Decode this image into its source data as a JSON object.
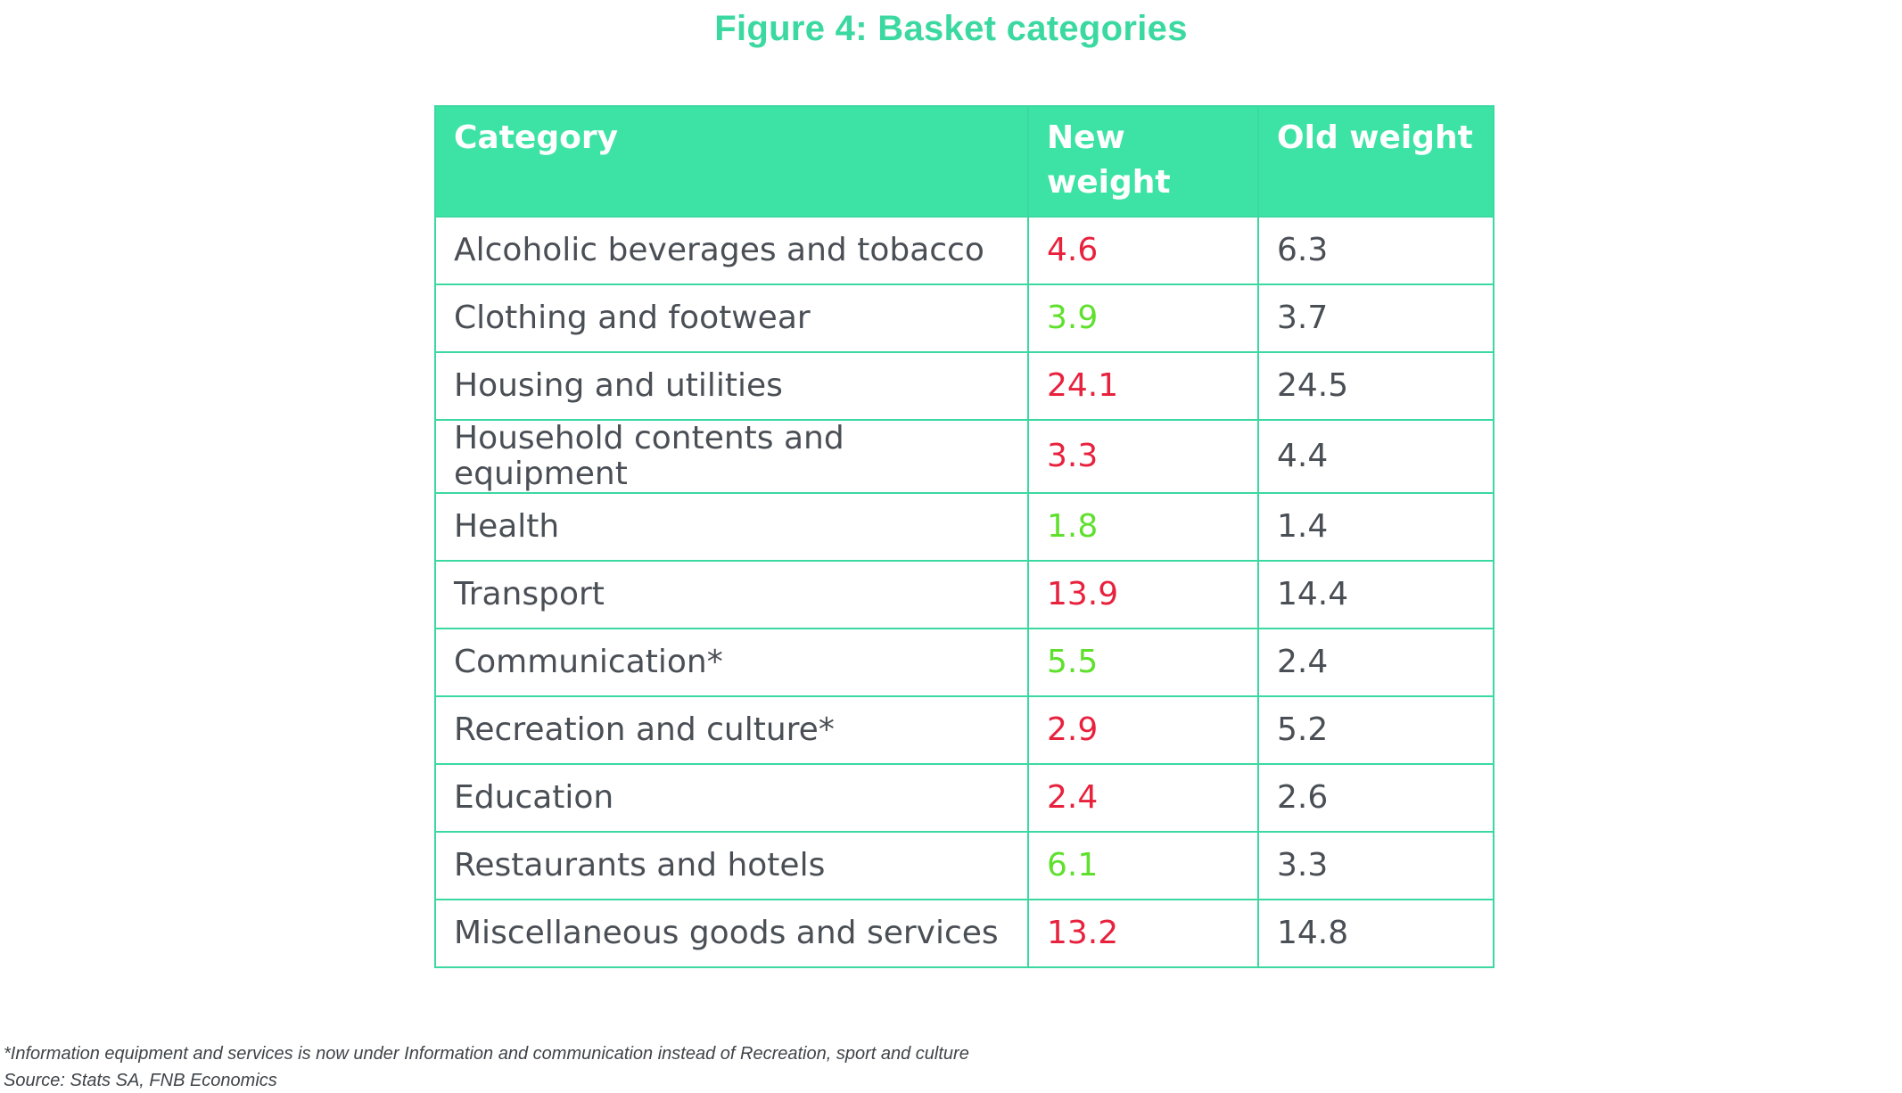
{
  "chart_data": {
    "type": "table",
    "title": "Figure 4: Basket categories",
    "columns": [
      "Category",
      "New weight",
      "Old weight"
    ],
    "rows": [
      {
        "category": "Alcoholic beverages and tobacco",
        "new_weight": "4.6",
        "old_weight": "6.3",
        "change": "down"
      },
      {
        "category": "Clothing and footwear",
        "new_weight": "3.9",
        "old_weight": "3.7",
        "change": "up"
      },
      {
        "category": "Housing and utilities",
        "new_weight": "24.1",
        "old_weight": "24.5",
        "change": "down"
      },
      {
        "category": "Household contents and equipment",
        "new_weight": "3.3",
        "old_weight": "4.4",
        "change": "down"
      },
      {
        "category": "Health",
        "new_weight": "1.8",
        "old_weight": "1.4",
        "change": "up"
      },
      {
        "category": "Transport",
        "new_weight": "13.9",
        "old_weight": "14.4",
        "change": "down"
      },
      {
        "category": "Communication*",
        "new_weight": "5.5",
        "old_weight": "2.4",
        "change": "up"
      },
      {
        "category": "Recreation and culture*",
        "new_weight": "2.9",
        "old_weight": "5.2",
        "change": "down"
      },
      {
        "category": "Education",
        "new_weight": "2.4",
        "old_weight": "2.6",
        "change": "down"
      },
      {
        "category": "Restaurants and hotels",
        "new_weight": "6.1",
        "old_weight": "3.3",
        "change": "up"
      },
      {
        "category": "Miscellaneous goods and services",
        "new_weight": "13.2",
        "old_weight": "14.8",
        "change": "down"
      }
    ],
    "footnote": "*Information equipment and services is now under Information and communication instead of Recreation, sport and culture",
    "source": "Source: Stats SA, FNB Economics"
  },
  "colors": {
    "title": "#3bd9a1",
    "header_background": "#3de3a5",
    "border": "#3bd9a1",
    "decrease": "#e8213d",
    "increase": "#5ee02c",
    "text": "#4a4f55"
  }
}
